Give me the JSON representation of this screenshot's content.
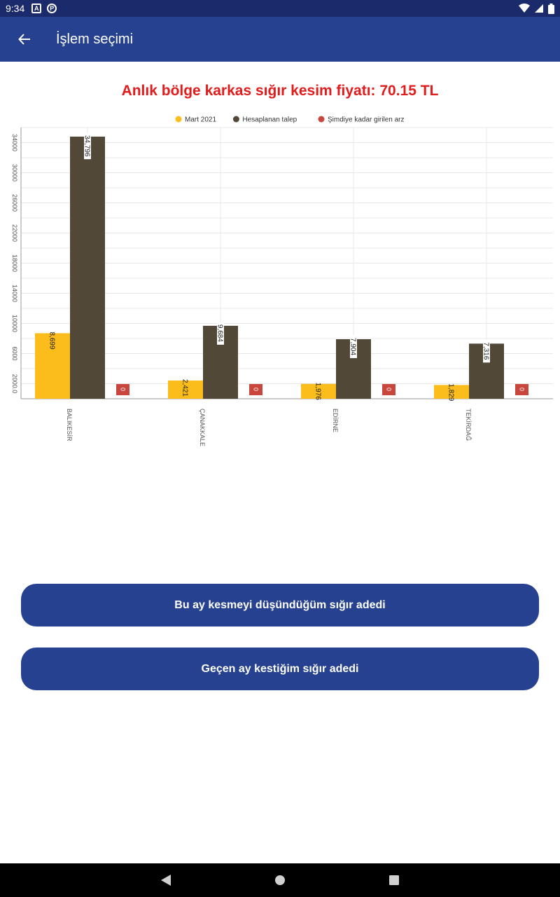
{
  "status_bar": {
    "time": "9:34",
    "notif1": "A",
    "notif2": "P"
  },
  "app_bar": {
    "title": "İşlem seçimi"
  },
  "chart_data": {
    "type": "bar",
    "title": "Anlık bölge karkas sığır kesim fiyatı: 70.15 TL",
    "categories": [
      "BALIKESİR",
      "ÇANAKKALE",
      "EDİRNE",
      "TEKİRDAĞ"
    ],
    "series": [
      {
        "name": "Mart 2021",
        "color": "#fbbd1c",
        "values": [
          8699,
          2421,
          1976,
          1829
        ],
        "labels": [
          "8,699",
          "2,421",
          "1,976",
          "1,829"
        ]
      },
      {
        "name": "Hesaplanan talep",
        "color": "#514838",
        "values": [
          34796,
          9684,
          7904,
          7316
        ],
        "labels": [
          "34,796",
          "9,684",
          "7,904",
          "7,316"
        ]
      },
      {
        "name": "Şimdiye kadar girilen arz",
        "color": "#c9463d",
        "values": [
          0,
          0,
          0,
          0
        ],
        "labels": [
          "0",
          "0",
          "0",
          "0"
        ]
      }
    ],
    "yticks": [
      "2000.0",
      "6000",
      "10000",
      "14000",
      "18000",
      "22000",
      "26000",
      "30000",
      "34000"
    ],
    "ylim": [
      0,
      36000
    ],
    "legend": "top-center",
    "grid": true
  },
  "buttons": {
    "plan": "Bu ay kesmeyi düşündüğüm sığır adedi",
    "last_month": "Geçen ay kestiğim sığır adedi"
  },
  "colors": {
    "primary": "#26418f",
    "status": "#1b2a6b",
    "title_red": "#e31b1b"
  }
}
